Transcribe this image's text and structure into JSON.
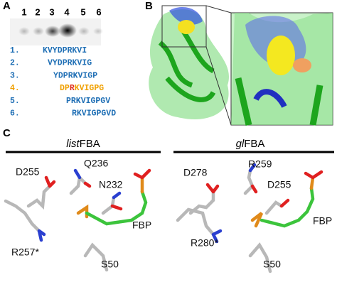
{
  "panel_labels": [
    "A",
    "B",
    "C"
  ],
  "panel_a": {
    "lanes": [
      "1",
      "2",
      "3",
      "4",
      "5",
      "6"
    ],
    "peptides": [
      {
        "number": "1.",
        "sequence": "KVYDPRKVI"
      },
      {
        "number": "2.",
        "sequence": "VYDPRKVIG"
      },
      {
        "number": "3.",
        "sequence": "YDPRKVIGP"
      },
      {
        "number": "4.",
        "sequence": {
          "before": "DP",
          "highlight": "R",
          "after": "KVIGPG"
        }
      },
      {
        "number": "5.",
        "sequence": "PRKVIGPGV"
      },
      {
        "number": "6.",
        "sequence": "RKVIGPGVD"
      }
    ]
  },
  "panel_c": {
    "left": {
      "header": {
        "italic": "list",
        "plain": "FBA"
      },
      "labels": [
        "D255",
        "Q236",
        "N232",
        "R257*",
        "FBP",
        "S50"
      ]
    },
    "right": {
      "header": {
        "italic": "gl",
        "plain": "FBA"
      },
      "labels": [
        "D278",
        "R259",
        "D255",
        "R280*",
        "FBP",
        "S50"
      ]
    }
  }
}
